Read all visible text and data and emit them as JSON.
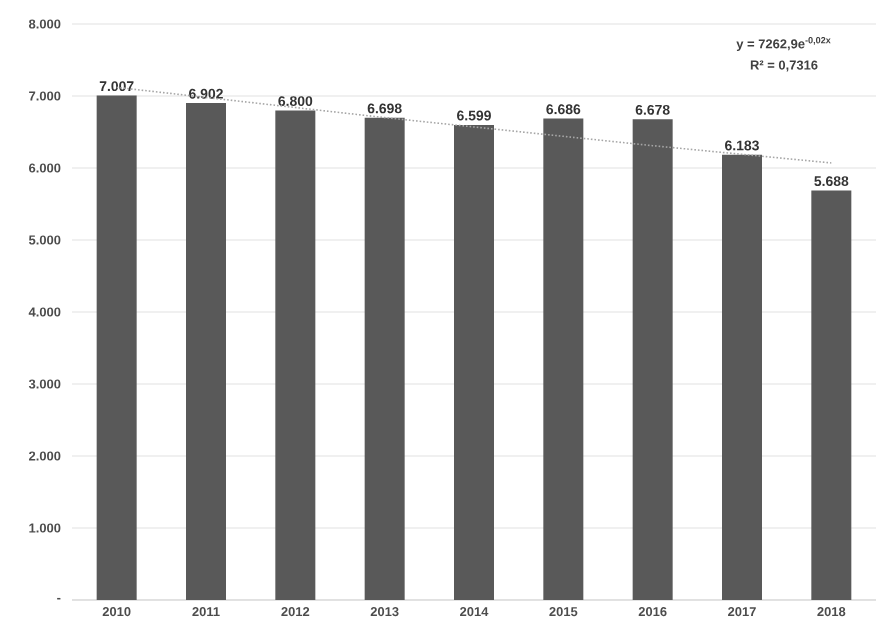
{
  "chart_data": {
    "type": "bar",
    "categories": [
      "2010",
      "2011",
      "2012",
      "2013",
      "2014",
      "2015",
      "2016",
      "2017",
      "2018"
    ],
    "series": [
      {
        "color": "#595959",
        "values": [
          7007,
          6902,
          6800,
          6698,
          6599,
          6686,
          6678,
          6183,
          5688
        ],
        "value_labels": [
          "7.007",
          "6.902",
          "6.800",
          "6.698",
          "6.599",
          "6.686",
          "6.678",
          "6.183",
          "5.688"
        ]
      },
      {
        "type": "line",
        "color": "#a6a6a6",
        "line_style": "dotted",
        "values": [
          7120,
          6980,
          6840,
          6700,
          6570,
          6440,
          6310,
          6190,
          6070
        ]
      }
    ],
    "ylim": [
      0,
      8000
    ],
    "yticks": [
      {
        "value": 0,
        "label": "-"
      },
      {
        "value": 1000,
        "label": "1.000"
      },
      {
        "value": 2000,
        "label": "2.000"
      },
      {
        "value": 3000,
        "label": "3.000"
      },
      {
        "value": 4000,
        "label": "4.000"
      },
      {
        "value": 5000,
        "label": "5.000"
      },
      {
        "value": 6000,
        "label": "6.000"
      },
      {
        "value": 7000,
        "label": "7.000"
      },
      {
        "value": 8000,
        "label": "8.000"
      }
    ],
    "grid": "y",
    "annotations": [
      "y = 7262,9e$^{-0,02x}$",
      "R² = 0,7316"
    ]
  }
}
